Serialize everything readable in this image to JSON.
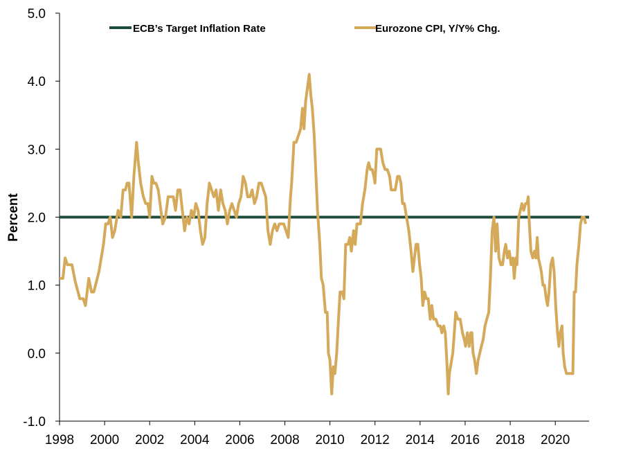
{
  "chart_data": {
    "type": "line",
    "title": "",
    "xlabel": "",
    "ylabel": "Percent",
    "xlim": [
      1998.0,
      2021.5
    ],
    "ylim": [
      -1.0,
      5.0
    ],
    "x_ticks": [
      "1998",
      "2000",
      "2002",
      "2004",
      "2006",
      "2008",
      "2010",
      "2012",
      "2014",
      "2016",
      "2018",
      "2020"
    ],
    "y_ticks": [
      "-1.0",
      "0.0",
      "1.0",
      "2.0",
      "3.0",
      "4.0",
      "5.0"
    ],
    "grid": false,
    "legend_position": "top",
    "series": [
      {
        "name": "ECB’s Target Inflation Rate",
        "color": "#1d4d3a",
        "points": [
          [
            1998.0,
            2.0
          ],
          [
            2021.5,
            2.0
          ]
        ]
      },
      {
        "name": "Eurozone CPI, Y/Y% Chg.",
        "color": "#d4aa5a",
        "points": [
          [
            1998.0,
            1.1
          ],
          [
            1998.15,
            1.1
          ],
          [
            1998.25,
            1.4
          ],
          [
            1998.35,
            1.3
          ],
          [
            1998.55,
            1.3
          ],
          [
            1998.7,
            1.05
          ],
          [
            1998.9,
            0.8
          ],
          [
            1999.05,
            0.8
          ],
          [
            1999.15,
            0.7
          ],
          [
            1999.3,
            1.1
          ],
          [
            1999.42,
            0.9
          ],
          [
            1999.52,
            0.9
          ],
          [
            1999.75,
            1.2
          ],
          [
            1999.95,
            1.6
          ],
          [
            2000.05,
            1.9
          ],
          [
            2000.15,
            1.9
          ],
          [
            2000.25,
            2.0
          ],
          [
            2000.35,
            1.7
          ],
          [
            2000.45,
            1.8
          ],
          [
            2000.6,
            2.1
          ],
          [
            2000.72,
            2.0
          ],
          [
            2000.82,
            2.4
          ],
          [
            2000.92,
            2.4
          ],
          [
            2001.0,
            2.5
          ],
          [
            2001.08,
            2.5
          ],
          [
            2001.2,
            2.0
          ],
          [
            2001.3,
            2.6
          ],
          [
            2001.42,
            3.1
          ],
          [
            2001.5,
            2.8
          ],
          [
            2001.6,
            2.5
          ],
          [
            2001.72,
            2.3
          ],
          [
            2001.82,
            2.2
          ],
          [
            2001.92,
            2.2
          ],
          [
            2002.0,
            2.0
          ],
          [
            2002.1,
            2.6
          ],
          [
            2002.18,
            2.5
          ],
          [
            2002.28,
            2.5
          ],
          [
            2002.38,
            2.4
          ],
          [
            2002.5,
            2.1
          ],
          [
            2002.58,
            1.9
          ],
          [
            2002.7,
            2.0
          ],
          [
            2002.82,
            2.3
          ],
          [
            2002.92,
            2.3
          ],
          [
            2003.05,
            2.3
          ],
          [
            2003.15,
            2.1
          ],
          [
            2003.25,
            2.4
          ],
          [
            2003.35,
            2.4
          ],
          [
            2003.45,
            2.1
          ],
          [
            2003.55,
            1.8
          ],
          [
            2003.65,
            2.0
          ],
          [
            2003.75,
            1.9
          ],
          [
            2003.85,
            2.1
          ],
          [
            2003.95,
            2.0
          ],
          [
            2004.05,
            2.2
          ],
          [
            2004.15,
            2.1
          ],
          [
            2004.25,
            1.8
          ],
          [
            2004.35,
            1.6
          ],
          [
            2004.45,
            1.7
          ],
          [
            2004.55,
            2.2
          ],
          [
            2004.65,
            2.5
          ],
          [
            2004.75,
            2.4
          ],
          [
            2004.85,
            2.3
          ],
          [
            2004.95,
            2.4
          ],
          [
            2005.05,
            2.1
          ],
          [
            2005.15,
            2.4
          ],
          [
            2005.25,
            2.2
          ],
          [
            2005.35,
            2.1
          ],
          [
            2005.45,
            1.9
          ],
          [
            2005.55,
            2.1
          ],
          [
            2005.65,
            2.2
          ],
          [
            2005.75,
            2.1
          ],
          [
            2005.85,
            2.0
          ],
          [
            2005.95,
            2.2
          ],
          [
            2006.05,
            2.3
          ],
          [
            2006.15,
            2.6
          ],
          [
            2006.25,
            2.5
          ],
          [
            2006.35,
            2.3
          ],
          [
            2006.45,
            2.3
          ],
          [
            2006.55,
            2.4
          ],
          [
            2006.65,
            2.2
          ],
          [
            2006.75,
            2.3
          ],
          [
            2006.85,
            2.5
          ],
          [
            2006.95,
            2.5
          ],
          [
            2007.05,
            2.4
          ],
          [
            2007.15,
            2.3
          ],
          [
            2007.25,
            1.8
          ],
          [
            2007.35,
            1.6
          ],
          [
            2007.45,
            1.8
          ],
          [
            2007.55,
            1.9
          ],
          [
            2007.65,
            1.8
          ],
          [
            2007.75,
            1.9
          ],
          [
            2007.85,
            1.9
          ],
          [
            2007.95,
            1.9
          ],
          [
            2008.05,
            1.8
          ],
          [
            2008.15,
            1.7
          ],
          [
            2008.25,
            2.3
          ],
          [
            2008.3,
            2.5
          ],
          [
            2008.4,
            3.1
          ],
          [
            2008.5,
            3.1
          ],
          [
            2008.6,
            3.2
          ],
          [
            2008.7,
            3.3
          ],
          [
            2008.78,
            3.6
          ],
          [
            2008.85,
            3.3
          ],
          [
            2008.92,
            3.7
          ],
          [
            2009.0,
            3.9
          ],
          [
            2009.08,
            4.1
          ],
          [
            2009.15,
            3.8
          ],
          [
            2009.22,
            3.6
          ],
          [
            2009.3,
            3.2
          ],
          [
            2009.38,
            2.6
          ],
          [
            2009.45,
            2.1
          ],
          [
            2009.55,
            1.6
          ],
          [
            2009.62,
            1.1
          ],
          [
            2009.7,
            1.0
          ],
          [
            2009.8,
            0.6
          ],
          [
            2009.88,
            0.6
          ],
          [
            2009.93,
            0.0
          ],
          [
            2010.0,
            -0.1
          ],
          [
            2010.08,
            -0.6
          ],
          [
            2010.15,
            -0.2
          ],
          [
            2010.22,
            -0.3
          ],
          [
            2010.3,
            0.0
          ],
          [
            2010.38,
            0.5
          ],
          [
            2010.45,
            0.9
          ],
          [
            2010.55,
            0.9
          ],
          [
            2010.62,
            0.8
          ],
          [
            2010.7,
            1.6
          ],
          [
            2010.8,
            1.6
          ],
          [
            2010.88,
            1.7
          ],
          [
            2010.95,
            1.5
          ],
          [
            2011.05,
            1.8
          ],
          [
            2011.12,
            1.6
          ],
          [
            2011.2,
            1.9
          ],
          [
            2011.28,
            1.9
          ],
          [
            2011.35,
            1.9
          ],
          [
            2011.45,
            2.2
          ],
          [
            2011.55,
            2.4
          ],
          [
            2011.65,
            2.7
          ],
          [
            2011.72,
            2.8
          ],
          [
            2011.8,
            2.7
          ],
          [
            2011.88,
            2.7
          ],
          [
            2011.95,
            2.6
          ],
          [
            2012.0,
            2.5
          ],
          [
            2012.08,
            3.0
          ],
          [
            2012.15,
            3.0
          ],
          [
            2012.25,
            3.0
          ],
          [
            2012.35,
            2.8
          ],
          [
            2012.45,
            2.7
          ],
          [
            2012.55,
            2.7
          ],
          [
            2012.65,
            2.6
          ],
          [
            2012.72,
            2.4
          ],
          [
            2012.8,
            2.4
          ],
          [
            2012.9,
            2.4
          ],
          [
            2013.0,
            2.6
          ],
          [
            2013.08,
            2.6
          ],
          [
            2013.15,
            2.5
          ],
          [
            2013.22,
            2.2
          ],
          [
            2013.3,
            2.2
          ],
          [
            2013.4,
            2.0
          ],
          [
            2013.5,
            1.8
          ],
          [
            2013.6,
            1.5
          ],
          [
            2013.68,
            1.2
          ],
          [
            2013.75,
            1.4
          ],
          [
            2013.82,
            1.6
          ],
          [
            2013.9,
            1.6
          ],
          [
            2013.98,
            1.3
          ],
          [
            2014.05,
            1.1
          ],
          [
            2014.12,
            0.7
          ],
          [
            2014.2,
            0.9
          ],
          [
            2014.28,
            0.8
          ],
          [
            2014.36,
            0.8
          ],
          [
            2014.45,
            0.5
          ],
          [
            2014.52,
            0.7
          ],
          [
            2014.6,
            0.5
          ],
          [
            2014.7,
            0.5
          ],
          [
            2014.8,
            0.4
          ],
          [
            2014.9,
            0.4
          ],
          [
            2014.97,
            0.3
          ],
          [
            2015.05,
            0.4
          ],
          [
            2015.12,
            0.3
          ],
          [
            2015.2,
            -0.2
          ],
          [
            2015.25,
            -0.6
          ],
          [
            2015.3,
            -0.3
          ],
          [
            2015.45,
            0.0
          ],
          [
            2015.52,
            0.3
          ],
          [
            2015.58,
            0.6
          ],
          [
            2015.68,
            0.5
          ],
          [
            2015.78,
            0.5
          ],
          [
            2015.88,
            0.3
          ],
          [
            2015.96,
            0.2
          ],
          [
            2016.02,
            0.1
          ],
          [
            2016.1,
            0.3
          ],
          [
            2016.18,
            0.1
          ],
          [
            2016.25,
            0.3
          ],
          [
            2016.3,
            0.3
          ],
          [
            2016.35,
            0.0
          ],
          [
            2016.42,
            -0.1
          ],
          [
            2016.5,
            -0.3
          ],
          [
            2016.58,
            -0.1
          ],
          [
            2016.65,
            0.0
          ],
          [
            2016.72,
            0.1
          ],
          [
            2016.8,
            0.2
          ],
          [
            2016.88,
            0.4
          ],
          [
            2016.96,
            0.5
          ],
          [
            2017.05,
            0.6
          ],
          [
            2017.12,
            1.1
          ],
          [
            2017.2,
            1.8
          ],
          [
            2017.28,
            2.0
          ],
          [
            2017.35,
            1.5
          ],
          [
            2017.42,
            1.9
          ],
          [
            2017.5,
            1.4
          ],
          [
            2017.58,
            1.3
          ],
          [
            2017.66,
            1.3
          ],
          [
            2017.74,
            1.5
          ],
          [
            2017.8,
            1.6
          ],
          [
            2017.88,
            1.4
          ],
          [
            2017.96,
            1.5
          ],
          [
            2018.04,
            1.3
          ],
          [
            2018.12,
            1.4
          ],
          [
            2018.18,
            1.1
          ],
          [
            2018.25,
            1.4
          ],
          [
            2018.3,
            1.3
          ],
          [
            2018.38,
            2.0
          ],
          [
            2018.45,
            2.1
          ],
          [
            2018.52,
            2.2
          ],
          [
            2018.6,
            2.1
          ],
          [
            2018.68,
            2.2
          ],
          [
            2018.75,
            2.2
          ],
          [
            2018.8,
            2.3
          ],
          [
            2018.85,
            1.9
          ],
          [
            2018.92,
            1.5
          ],
          [
            2019.0,
            1.4
          ],
          [
            2019.08,
            1.5
          ],
          [
            2019.14,
            1.4
          ],
          [
            2019.2,
            1.7
          ],
          [
            2019.25,
            1.4
          ],
          [
            2019.32,
            1.3
          ],
          [
            2019.38,
            1.2
          ],
          [
            2019.45,
            1.0
          ],
          [
            2019.52,
            1.0
          ],
          [
            2019.6,
            0.8
          ],
          [
            2019.66,
            0.7
          ],
          [
            2019.72,
            0.9
          ],
          [
            2019.8,
            1.3
          ],
          [
            2019.88,
            1.4
          ],
          [
            2019.95,
            1.2
          ],
          [
            2020.02,
            0.7
          ],
          [
            2020.1,
            0.3
          ],
          [
            2020.16,
            0.1
          ],
          [
            2020.22,
            0.3
          ],
          [
            2020.3,
            0.4
          ],
          [
            2020.35,
            0.0
          ],
          [
            2020.42,
            -0.2
          ],
          [
            2020.5,
            -0.3
          ],
          [
            2020.58,
            -0.3
          ],
          [
            2020.65,
            -0.3
          ],
          [
            2020.72,
            -0.3
          ],
          [
            2020.78,
            -0.3
          ],
          [
            2020.84,
            0.9
          ],
          [
            2020.9,
            0.9
          ],
          [
            2020.96,
            1.3
          ],
          [
            2021.05,
            1.6
          ],
          [
            2021.12,
            1.9
          ],
          [
            2021.2,
            2.0
          ],
          [
            2021.28,
            2.0
          ],
          [
            2021.35,
            1.9
          ]
        ]
      }
    ]
  }
}
